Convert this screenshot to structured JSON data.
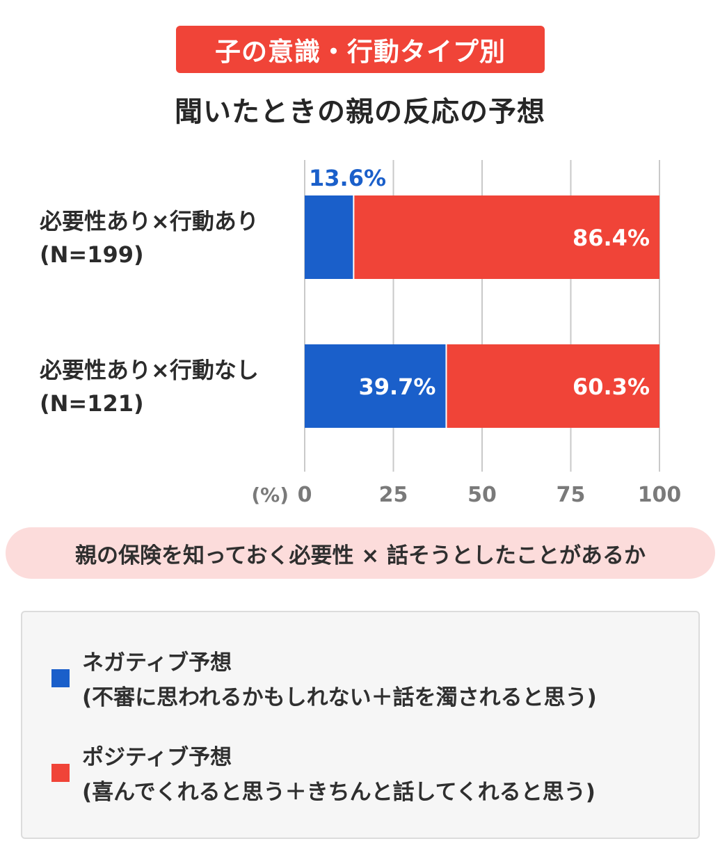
{
  "header": {
    "badge": "子の意識・行動タイプ別",
    "title": "聞いたときの親の反応の予想"
  },
  "subtitle": "親の保険を知っておく必要性 × 話そうとしたことがあるか",
  "legend": [
    {
      "line1": "ネガティブ予想",
      "line2": "(不審に思われるかもしれない＋話を濁されると思う)",
      "color": "#1a5fca"
    },
    {
      "line1": "ポジティブ予想",
      "line2": "(喜んでくれると思う＋きちんと話してくれると思う)",
      "color": "#f04438"
    }
  ],
  "chart_data": {
    "type": "bar",
    "orientation": "horizontal",
    "stacked": true,
    "categories": [
      "必要性あり×行動あり",
      "必要性あり×行動なし"
    ],
    "category_sublabels": [
      "(N=199)",
      "(N=121)"
    ],
    "series": [
      {
        "name": "ネガティブ予想",
        "values": [
          13.6,
          39.7
        ],
        "color": "#1a5fca"
      },
      {
        "name": "ポジティブ予想",
        "values": [
          86.4,
          60.3
        ],
        "color": "#f04438"
      }
    ],
    "data_labels": [
      [
        "13.6%",
        "39.7%"
      ],
      [
        "86.4%",
        "60.3%"
      ]
    ],
    "unit_label": "(%)",
    "xlim": [
      0,
      100
    ],
    "x_ticks": [
      0,
      25,
      50,
      75,
      100
    ],
    "grid": true,
    "legend_position": "bottom"
  }
}
